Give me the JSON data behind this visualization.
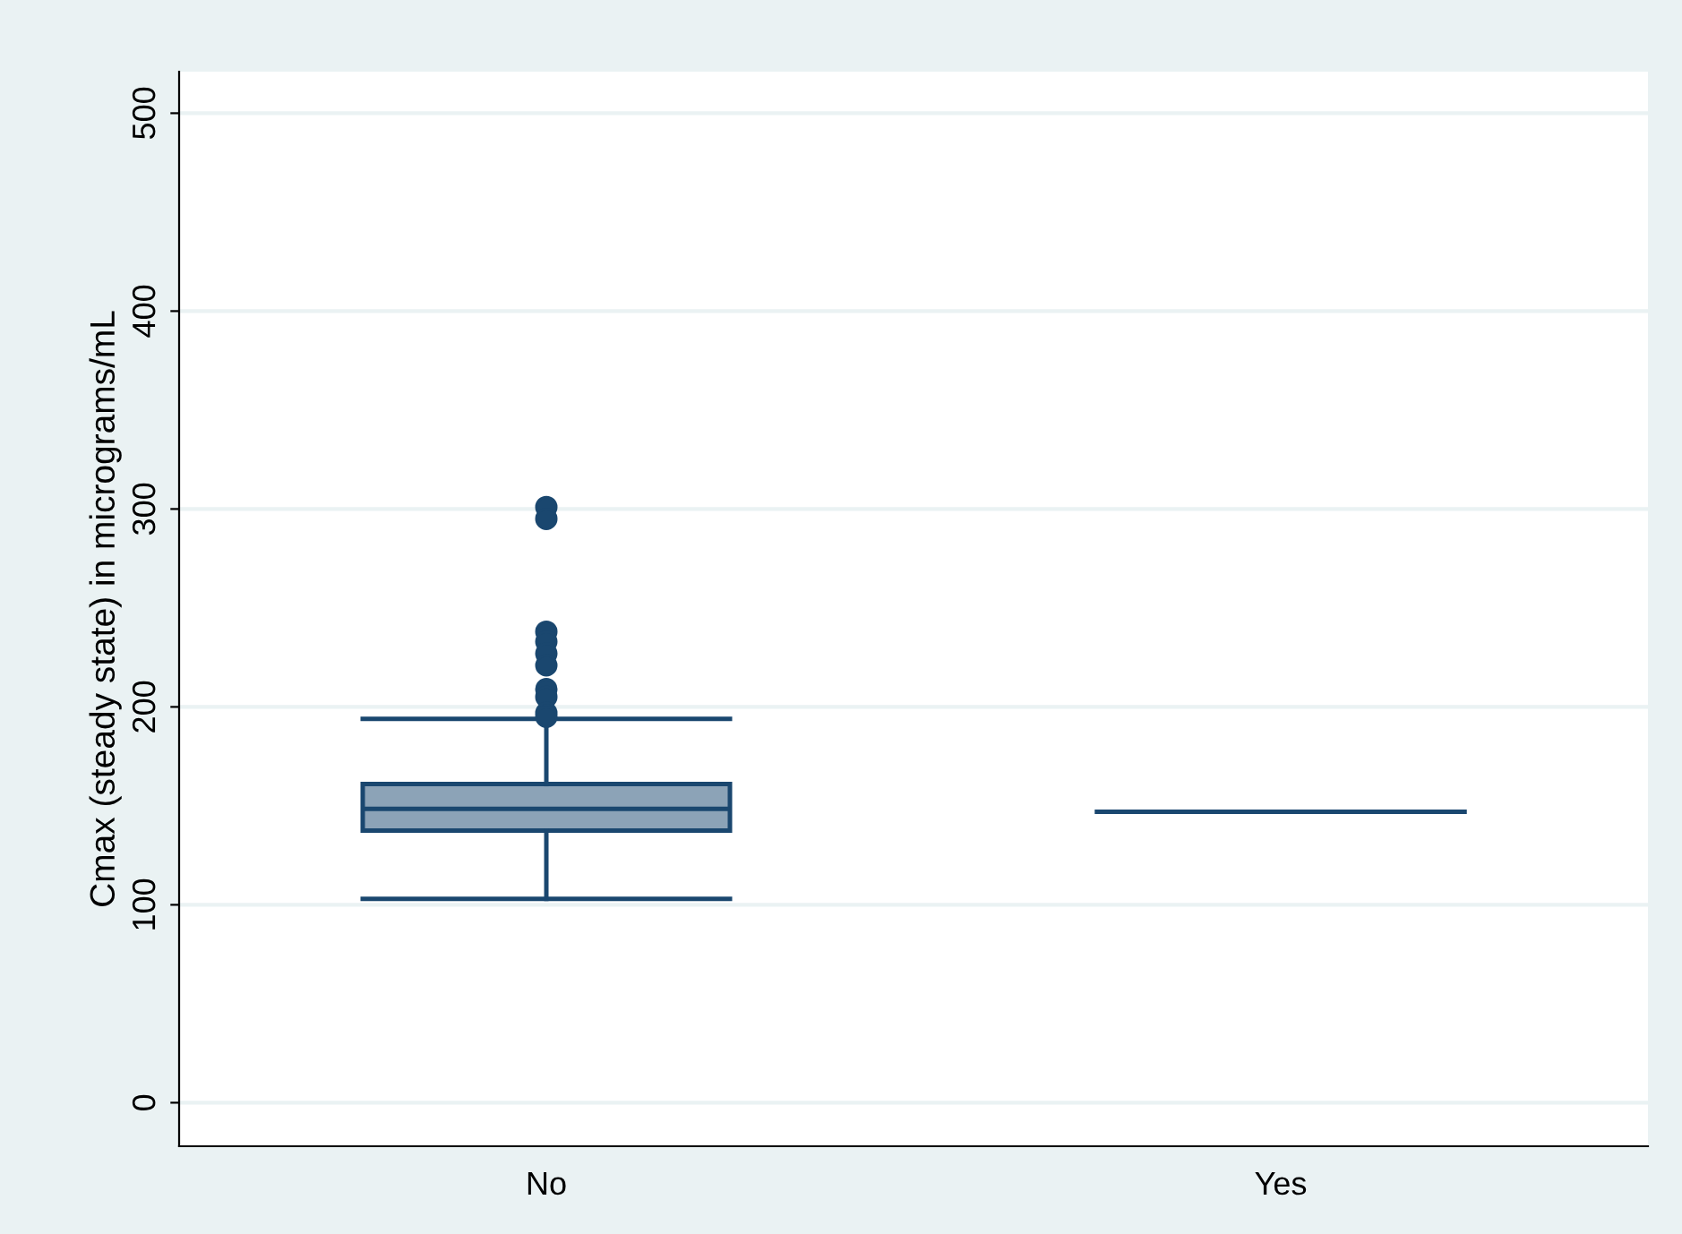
{
  "chart_data": {
    "type": "box",
    "ylabel": "Cmax (steady state) in micrograms/mL",
    "categories": [
      "No",
      "Yes"
    ],
    "series": [
      {
        "color": "#1a476f",
        "boxes": [
          {
            "low": 103,
            "q1": 137.5,
            "median": 148.5,
            "q3": 161,
            "high": 194,
            "outliers": [
              301,
              295,
              238,
              233,
              227,
              221,
              209,
              205,
              197,
              195
            ]
          },
          {
            "low": 147,
            "q1": 147,
            "median": 147,
            "q3": 147,
            "high": 147
          }
        ]
      }
    ],
    "ylim": [
      -22,
      521
    ],
    "yticks": [
      0,
      100,
      200,
      300,
      400,
      500
    ],
    "grid": "y"
  }
}
